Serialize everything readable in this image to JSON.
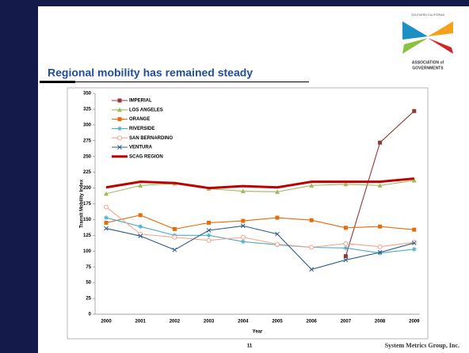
{
  "slide": {
    "title": "Regional mobility has remained steady",
    "page_number": "11",
    "footer": "System Metrics Group, Inc.",
    "logo_top": "SOUTHERN CALIFORNIA",
    "logo_bottom_1": "ASSOCIATION of",
    "logo_bottom_2": "GOVERNMENTS"
  },
  "chart_data": {
    "type": "line",
    "x_label": "Year",
    "y_label": "Transit Mobility Index",
    "categories": [
      "2000",
      "2001",
      "2002",
      "2003",
      "2004",
      "2005",
      "2006",
      "2007",
      "2008",
      "2009"
    ],
    "ylim": [
      0,
      350
    ],
    "yticks": [
      0,
      25,
      50,
      75,
      100,
      125,
      150,
      175,
      200,
      225,
      250,
      275,
      300,
      325,
      350
    ],
    "legend": "top-left",
    "series": [
      {
        "name": "IMPERIAL",
        "color": "#953735",
        "marker": "square",
        "values": [
          null,
          null,
          null,
          null,
          null,
          null,
          null,
          92,
          272,
          322
        ]
      },
      {
        "name": "LOS ANGELES",
        "color": "#9bbb59",
        "marker": "triangle",
        "values": [
          191,
          204,
          207,
          199,
          195,
          194,
          204,
          206,
          204,
          212
        ]
      },
      {
        "name": "ORANGE",
        "color": "#e46c0a",
        "marker": "square",
        "values": [
          145,
          157,
          135,
          145,
          148,
          153,
          149,
          137,
          139,
          134
        ]
      },
      {
        "name": "RIVERSIDE",
        "color": "#4bacc6",
        "marker": "star",
        "values": [
          153,
          139,
          125,
          125,
          115,
          110,
          106,
          105,
          97,
          103
        ]
      },
      {
        "name": "SAN BERNARDINO",
        "color": "#f2a28c",
        "marker": "circle",
        "values": [
          170,
          127,
          122,
          117,
          122,
          111,
          106,
          112,
          107,
          114
        ]
      },
      {
        "name": "VENTURA",
        "color": "#2c5d8a",
        "marker": "cross",
        "values": [
          136,
          124,
          102,
          133,
          140,
          127,
          71,
          86,
          98,
          113
        ]
      },
      {
        "name": "SCAG REGION",
        "color": "#c00000",
        "marker": "none",
        "width": 3,
        "values": [
          201,
          210,
          208,
          200,
          203,
          201,
          210,
          210,
          210,
          215
        ]
      }
    ]
  }
}
